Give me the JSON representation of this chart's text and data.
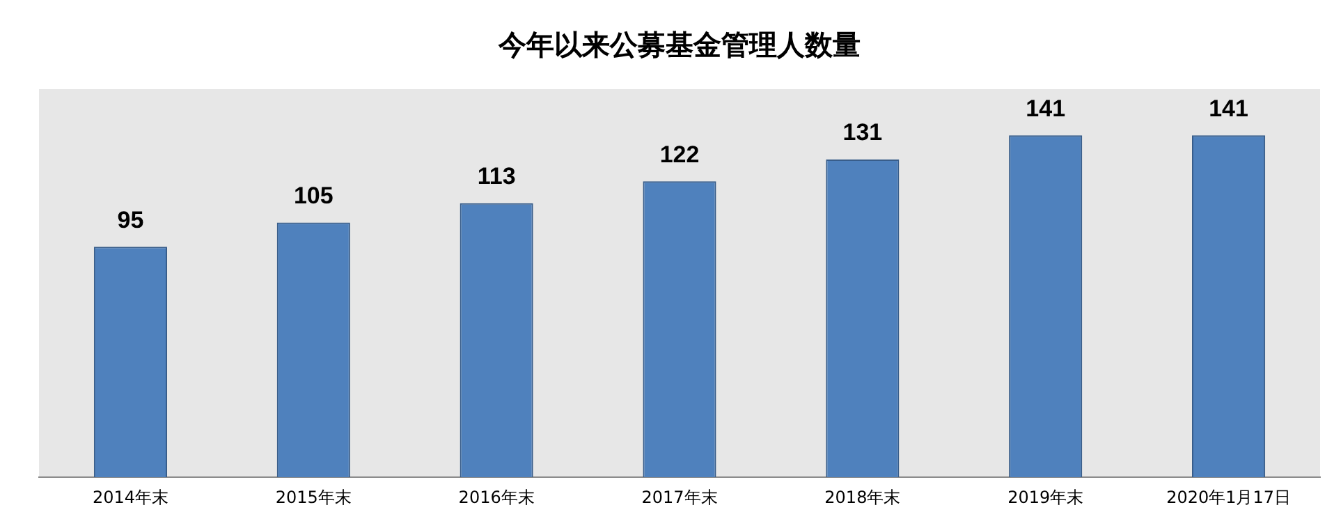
{
  "chart_data": {
    "type": "bar",
    "title": "今年以来公募基金管理人数量",
    "categories": [
      "2014年末",
      "2015年末",
      "2016年末",
      "2017年末",
      "2018年末",
      "2019年末",
      "2020年1月17日"
    ],
    "values": [
      95,
      105,
      113,
      122,
      131,
      141,
      141
    ],
    "color": "#4f81bd",
    "ylim": [
      0,
      160
    ],
    "data_labels": true,
    "grid": false,
    "legend": false,
    "tick_labels": "x"
  }
}
